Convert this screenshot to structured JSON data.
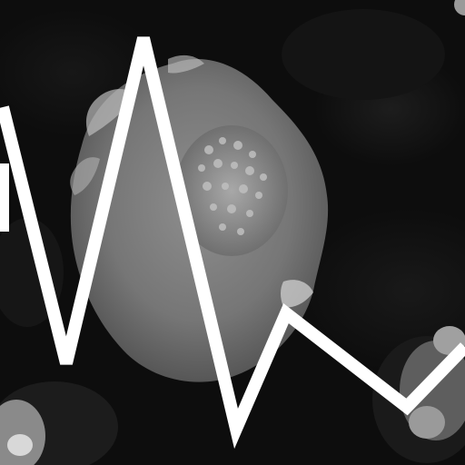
{
  "image": {
    "style": "grayscale",
    "subject": "flower",
    "colors": {
      "background": "#0d0d0d",
      "petal": "#7a7a7a",
      "petal_highlight": "#bdbdbd",
      "center": "#9c9c9c",
      "overlay_line": "#ffffff"
    }
  }
}
